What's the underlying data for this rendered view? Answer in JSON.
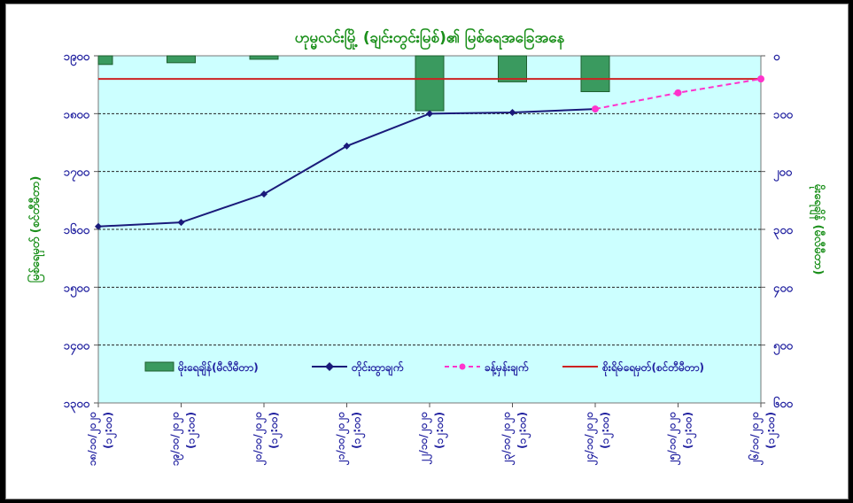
{
  "chart_data": {
    "type": "bar+line",
    "title": "ဟုမ္မလင်းမြို့ (ချင်းတွင်းမြစ်)၏ မြစ်ရေအခြေအနေ",
    "ylabel_left": "မြစ်ရေမှတ် (စင်တီမီတာ)",
    "ylabel_right": "မိုးရေချိန် (မီလီမီတာ)",
    "left_axis": {
      "ticks": [
        "၁၃၀၀",
        "၁၄၀၀",
        "၁၅၀၀",
        "၁၆၀၀",
        "၁၇၀၀",
        "၁၈၀၀",
        "၁၉၀၀"
      ],
      "min": 1300,
      "max": 1900,
      "step": 100
    },
    "right_axis": {
      "ticks": [
        "၀",
        "၁၀၀",
        "၂၀၀",
        "၃၀၀",
        "၄၀၀",
        "၅၀၀",
        "၆၀၀"
      ],
      "min": 0,
      "max": 600,
      "step": 100,
      "inverted": true
    },
    "x_dates": [
      "၁၈/၁၀/၂၀၂၀",
      "၁၉/၁၀/၂၀၂၀",
      "၂၀/၁၀/၂၀၂၀",
      "၂၁/၁၀/၂၀၂၀",
      "၂၂/၁၀/၂၀၂၀",
      "၂၃/၁၀/၂၀၂၀",
      "၂၄/၁၀/၂၀၂၀",
      "၂၅/၁၀/၂၀၂၀",
      "၂၆/၁၀/၂၀၂၀"
    ],
    "x_times": [
      "(၁၂:၀၀)",
      "(၁၂:၀၀)",
      "(၁၂:၀၀)",
      "(၁၂:၀၀)",
      "(၁၂:၀၀)",
      "(၁၂:၀၀)",
      "(၁၂:၀၀)",
      "(၁၂:၀၀)",
      "(၁၂:၀၀)"
    ],
    "series": [
      {
        "name": "မိုးရေချိန်(မီလီမီတာ)",
        "type": "bar",
        "axis": "right",
        "color": "#3a9a5f",
        "values": [
          15,
          12,
          6,
          null,
          95,
          45,
          62,
          null,
          null
        ]
      },
      {
        "name": "တိုင်းထွာချက်",
        "type": "line",
        "axis": "left",
        "color": "#1a1a7a",
        "values": [
          1605,
          1612,
          1661,
          1744,
          1800,
          1802,
          1808,
          null,
          null
        ]
      },
      {
        "name": "ခန့်မှန်းချက်",
        "type": "line-dashed",
        "axis": "left",
        "color": "#ff33cc",
        "values": [
          null,
          null,
          null,
          null,
          null,
          null,
          1808,
          1836,
          1860
        ]
      },
      {
        "name": "စိုးရိမ်ရေမှတ်(စင်တီမီတာ)",
        "type": "hline",
        "axis": "left",
        "color": "#cc2222",
        "value": 1860
      }
    ],
    "grid": "horizontal dashed",
    "legend": "bottom"
  }
}
